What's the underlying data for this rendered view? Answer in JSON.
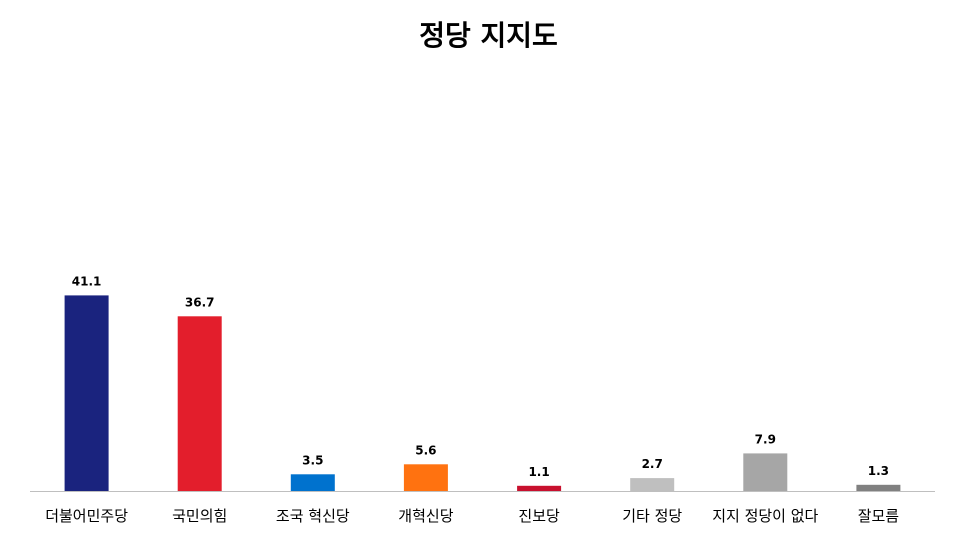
{
  "chart_data": {
    "type": "bar",
    "title": "정당 지지도",
    "xlabel": "",
    "ylabel": "",
    "ylim": [
      0,
      90
    ],
    "grid": false,
    "legend": "none",
    "categories": [
      "더불어민주당",
      "국민의힘",
      "조국 혁신당",
      "개혁신당",
      "진보당",
      "기타 정당",
      "지지 정당이 없다",
      "잘모름"
    ],
    "values": [
      41.1,
      36.7,
      3.5,
      5.6,
      1.1,
      2.7,
      7.9,
      1.3
    ],
    "value_labels": [
      "41.1",
      "36.7",
      "3.5",
      "5.6",
      "1.1",
      "2.7",
      "7.9",
      "1.3"
    ],
    "colors": [
      "#1a237e",
      "#e31e2c",
      "#0072ce",
      "#ff7210",
      "#c8102e",
      "#bfbfbf",
      "#a6a6a6",
      "#808080"
    ]
  }
}
